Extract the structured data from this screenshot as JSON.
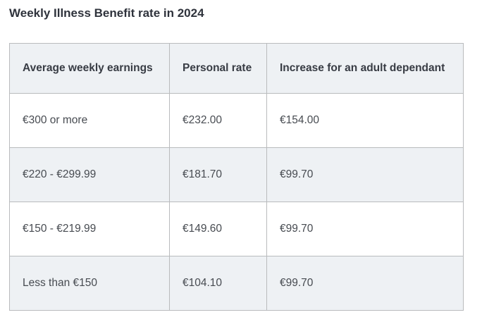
{
  "page": {
    "title": "Weekly Illness Benefit rate in 2024"
  },
  "table": {
    "columns": [
      "Average weekly earnings",
      "Personal rate",
      "Increase for an adult dependant"
    ],
    "rows": [
      [
        "€300 or more",
        "€232.00",
        "€154.00"
      ],
      [
        "€220 - €299.99",
        "€181.70",
        "€99.70"
      ],
      [
        "€150 - €219.99",
        "€149.60",
        "€99.70"
      ],
      [
        "Less than €150",
        "€104.10",
        "€99.70"
      ]
    ]
  },
  "chart_data": {
    "type": "table",
    "title": "Weekly Illness Benefit rate in 2024",
    "columns": [
      "Average weekly earnings",
      "Personal rate",
      "Increase for an adult dependant"
    ],
    "rows": [
      [
        "€300 or more",
        "€232.00",
        "€154.00"
      ],
      [
        "€220 - €299.99",
        "€181.70",
        "€99.70"
      ],
      [
        "€150 - €219.99",
        "€149.60",
        "€99.70"
      ],
      [
        "Less than €150",
        "€104.10",
        "€99.70"
      ]
    ]
  },
  "colors": {
    "stripe_and_header_bg": "#eef1f4",
    "border": "#b9bbbd",
    "title_text": "#2f333c",
    "cell_text": "#474b51"
  }
}
